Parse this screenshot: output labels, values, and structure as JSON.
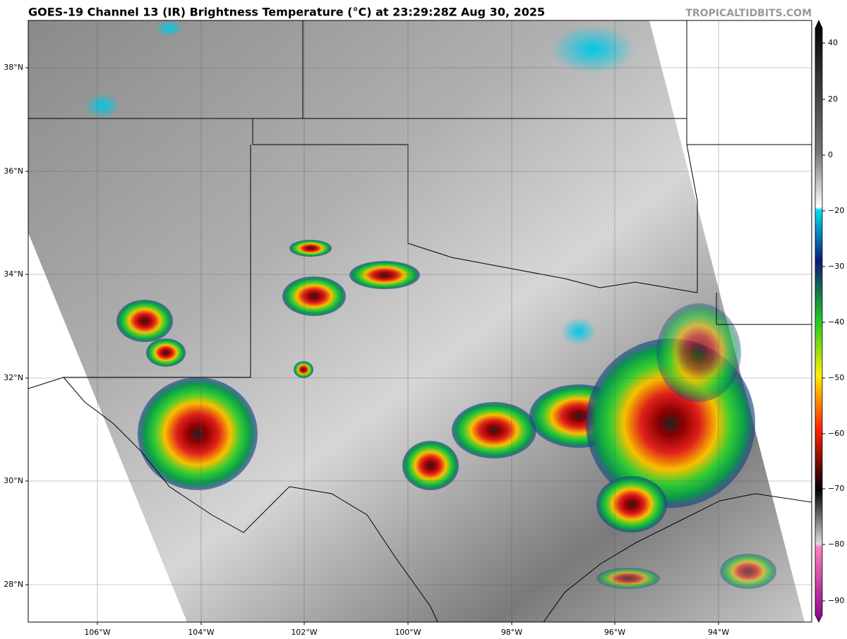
{
  "header": {
    "title": "GOES-19 Channel 13 (IR) Brightness Temperature (°C) at 23:29:28Z Aug 30, 2025",
    "credit": "TROPICALTIDBITS.COM"
  },
  "map": {
    "lat_labels": [
      "38°N",
      "36°N",
      "34°N",
      "32°N",
      "30°N",
      "28°N"
    ],
    "lon_labels": [
      "106°W",
      "104°W",
      "102°W",
      "100°W",
      "98°W",
      "96°W",
      "94°W"
    ]
  },
  "colorbar": {
    "tick_labels": [
      "40",
      "20",
      "0",
      "−20",
      "−30",
      "−40",
      "−50",
      "−60",
      "−70",
      "−80",
      "−90"
    ]
  }
}
